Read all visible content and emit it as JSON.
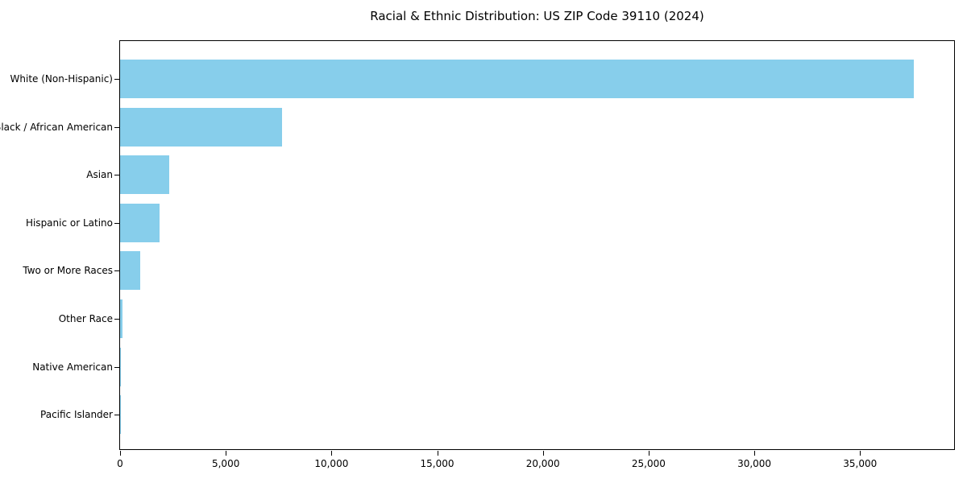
{
  "title": "Racial & Ethnic Distribution: US ZIP Code 39110 (2024)",
  "chart_data": {
    "type": "bar",
    "orientation": "horizontal",
    "title": "Racial & Ethnic Distribution: US ZIP Code 39110 (2024)",
    "xlabel": "",
    "ylabel": "",
    "categories": [
      "White (Non-Hispanic)",
      "Black / African American",
      "Asian",
      "Hispanic or Latino",
      "Two or More Races",
      "Other Race",
      "Native American",
      "Pacific Islander"
    ],
    "values": [
      37560,
      7680,
      2320,
      1850,
      960,
      130,
      35,
      10
    ],
    "bar_color": "#87ceeb",
    "xlim": [
      0,
      39450
    ],
    "xticks": [
      0,
      5000,
      10000,
      15000,
      20000,
      25000,
      30000,
      35000
    ],
    "xtick_labels": [
      "0",
      "5,000",
      "10,000",
      "15,000",
      "20,000",
      "25,000",
      "30,000",
      "35,000"
    ],
    "grid": false,
    "legend": null,
    "first_category_at_top": true
  }
}
